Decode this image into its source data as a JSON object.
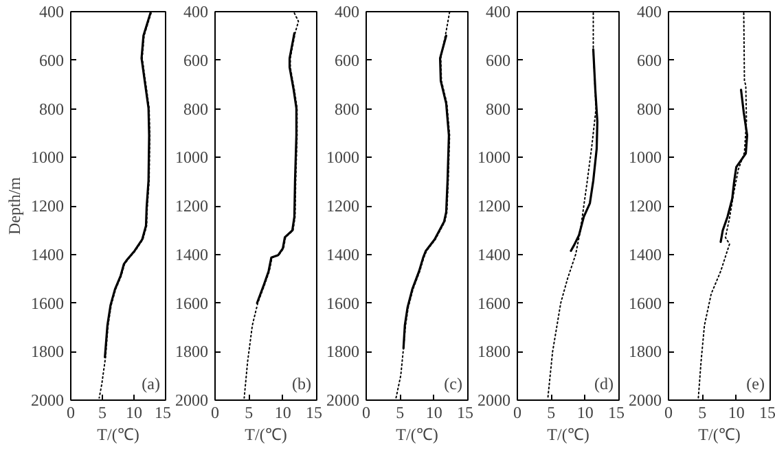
{
  "chart_data": [
    {
      "type": "line",
      "ylabel": "Depth/m",
      "xlabel": "T/(℃)",
      "xlim": [
        0,
        15
      ],
      "xticks": [
        0,
        5,
        10,
        15
      ],
      "ylim": [
        2000,
        400
      ],
      "yticks": [
        400,
        600,
        800,
        1000,
        1200,
        1400,
        1600,
        1800,
        2000
      ],
      "grid": false,
      "annotations": [
        "(a)"
      ],
      "series": [
        {
          "color": "#000000",
          "line_style": "dotted",
          "x": [
            12.7,
            11.6,
            11.3,
            11.4,
            11.9,
            12.4,
            12.5,
            12.4,
            12.1,
            12.0,
            11.4,
            10.2,
            9.0,
            8.5,
            8.0,
            7.1,
            6.4,
            5.9,
            5.5,
            4.9,
            4.5
          ],
          "values": [
            406,
            499,
            592,
            610,
            704,
            797,
            909,
            1096,
            1207,
            1282,
            1338,
            1385,
            1422,
            1440,
            1487,
            1543,
            1608,
            1692,
            1823,
            1935,
            1991
          ]
        },
        {
          "color": "#000000",
          "line_style": "solid",
          "x": [
            12.6,
            11.5,
            11.2,
            11.3,
            11.8,
            12.3,
            12.4,
            12.3,
            12.0,
            11.9,
            11.3,
            10.1,
            8.9,
            8.4,
            7.9,
            7.0,
            6.3,
            5.8,
            5.4
          ],
          "values": [
            406,
            499,
            592,
            610,
            704,
            797,
            909,
            1096,
            1207,
            1282,
            1338,
            1385,
            1422,
            1440,
            1487,
            1543,
            1608,
            1692,
            1823
          ]
        }
      ]
    },
    {
      "type": "line",
      "xlabel": "T/(℃)",
      "xlim": [
        0,
        15
      ],
      "xticks": [
        0,
        5,
        10,
        15
      ],
      "ylim": [
        2000,
        400
      ],
      "yticks": [
        400,
        600,
        800,
        1000,
        1200,
        1400,
        1600,
        1800,
        2000
      ],
      "grid": false,
      "annotations": [
        "(b)"
      ],
      "series": [
        {
          "color": "#000000",
          "line_style": "dotted",
          "x": [
            11.7,
            12.3,
            11.8,
            11.1,
            11.1,
            11.7,
            12.1,
            12.1,
            11.9,
            11.8,
            11.5,
            10.4,
            10.1,
            9.4,
            8.4,
            8.0,
            7.3,
            6.3,
            5.5,
            4.8,
            4.3
          ],
          "values": [
            406,
            440,
            489,
            592,
            629,
            722,
            797,
            909,
            1096,
            1245,
            1301,
            1329,
            1375,
            1403,
            1413,
            1469,
            1525,
            1600,
            1692,
            1842,
            1991
          ]
        },
        {
          "color": "#000000",
          "line_style": "solid",
          "x": [
            11.7,
            11.0,
            11.0,
            11.6,
            12.0,
            12.0,
            11.8,
            11.7,
            11.4,
            10.3,
            10.0,
            9.3,
            8.3,
            7.9,
            7.2,
            6.2
          ],
          "values": [
            489,
            592,
            629,
            722,
            797,
            909,
            1096,
            1245,
            1301,
            1329,
            1375,
            1403,
            1413,
            1469,
            1525,
            1600
          ]
        }
      ]
    },
    {
      "type": "line",
      "xlabel": "T/(℃)",
      "xlim": [
        0,
        15
      ],
      "xticks": [
        0,
        5,
        10,
        15
      ],
      "ylim": [
        2000,
        400
      ],
      "yticks": [
        400,
        600,
        800,
        1000,
        1200,
        1400,
        1600,
        1800,
        2000
      ],
      "grid": false,
      "annotations": [
        "(c)"
      ],
      "series": [
        {
          "color": "#000000",
          "line_style": "dotted",
          "x": [
            12.3,
            11.8,
            11.0,
            11.1,
            11.9,
            12.3,
            12.1,
            11.9,
            11.6,
            10.9,
            10.2,
            8.9,
            8.5,
            7.9,
            6.9,
            6.2,
            5.8,
            5.5,
            5.1,
            4.4
          ],
          "values": [
            402,
            480,
            592,
            685,
            778,
            909,
            1096,
            1226,
            1264,
            1301,
            1338,
            1385,
            1413,
            1469,
            1543,
            1618,
            1692,
            1786,
            1898,
            1991
          ]
        },
        {
          "color": "#000000",
          "line_style": "solid",
          "x": [
            11.8,
            10.9,
            11.0,
            11.8,
            12.2,
            12.0,
            11.8,
            11.5,
            10.8,
            10.1,
            8.8,
            8.4,
            7.8,
            6.8,
            6.1,
            5.7,
            5.5
          ],
          "values": [
            499,
            592,
            685,
            778,
            909,
            1096,
            1226,
            1264,
            1301,
            1338,
            1385,
            1413,
            1469,
            1543,
            1618,
            1692,
            1786
          ]
        }
      ]
    },
    {
      "type": "line",
      "xlabel": "T/(℃)",
      "xlim": [
        0,
        15
      ],
      "xticks": [
        0,
        5,
        10,
        15
      ],
      "ylim": [
        2000,
        400
      ],
      "yticks": [
        400,
        600,
        800,
        1000,
        1200,
        1400,
        1600,
        1800,
        2000
      ],
      "grid": false,
      "annotations": [
        "(d)"
      ],
      "series": [
        {
          "color": "#000000",
          "line_style": "dotted",
          "x": [
            11.2,
            11.2,
            11.6,
            11.0,
            10.3,
            9.8,
            9.3,
            8.6,
            7.4,
            6.4,
            5.8,
            5.2,
            4.5
          ],
          "values": [
            406,
            555,
            800,
            950,
            1100,
            1200,
            1300,
            1400,
            1500,
            1600,
            1700,
            1800,
            1991
          ]
        },
        {
          "color": "#000000",
          "line_style": "solid",
          "x": [
            11.2,
            11.5,
            11.8,
            11.7,
            11.2,
            10.7,
            9.8,
            9.1,
            8.4,
            7.9
          ],
          "values": [
            555,
            722,
            853,
            965,
            1096,
            1189,
            1245,
            1320,
            1360,
            1385
          ]
        }
      ]
    },
    {
      "type": "line",
      "xlabel": "T/(℃)",
      "xlim": [
        0,
        15
      ],
      "xticks": [
        0,
        5,
        10,
        15
      ],
      "ylim": [
        2000,
        400
      ],
      "yticks": [
        400,
        600,
        800,
        1000,
        1200,
        1400,
        1600,
        1800,
        2000
      ],
      "grid": false,
      "annotations": [
        "(e)"
      ],
      "series": [
        {
          "color": "#000000",
          "line_style": "dotted",
          "x": [
            11.1,
            11.2,
            11.4,
            11.5,
            11.2,
            10.3,
            9.6,
            9.0,
            8.4,
            9.0,
            7.7,
            6.3,
            5.3,
            4.8,
            4.4
          ],
          "values": [
            406,
            685,
            704,
            850,
            980,
            1050,
            1150,
            1250,
            1330,
            1357,
            1469,
            1562,
            1692,
            1842,
            1991
          ]
        },
        {
          "color": "#000000",
          "line_style": "solid",
          "x": [
            10.7,
            11.1,
            11.6,
            11.4,
            10.0,
            9.7,
            9.4,
            8.7,
            8.0,
            7.7
          ],
          "values": [
            722,
            815,
            909,
            984,
            1040,
            1096,
            1170,
            1245,
            1301,
            1348
          ]
        }
      ]
    }
  ]
}
